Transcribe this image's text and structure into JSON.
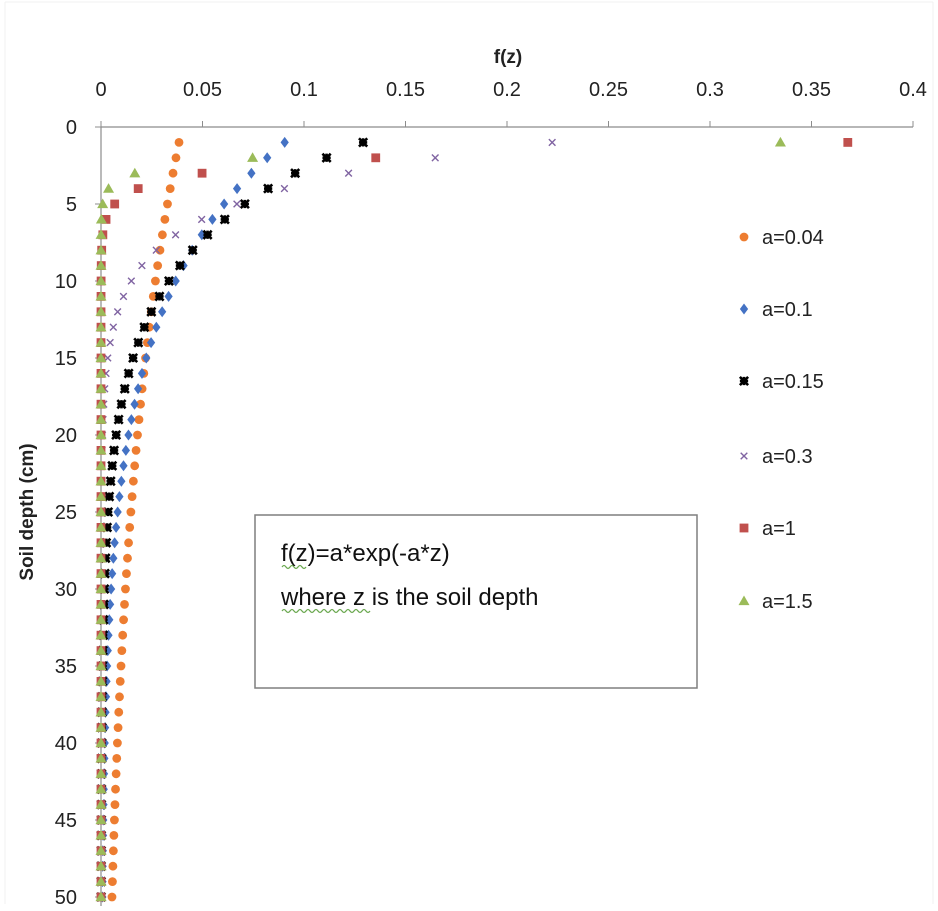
{
  "chart_data": {
    "type": "scatter",
    "title": "",
    "xlabel": "f(z)",
    "ylabel": "Soil depth (cm)",
    "x_axis_position": "top",
    "y_axis_inverted": true,
    "xlim": [
      0,
      0.4
    ],
    "ylim": [
      0,
      50
    ],
    "x_ticks": [
      "0",
      "0.05",
      "0.1",
      "0.15",
      "0.2",
      "0.25",
      "0.3",
      "0.35",
      "0.4"
    ],
    "y_ticks": [
      "0",
      "5",
      "10",
      "15",
      "20",
      "25",
      "30",
      "35",
      "40",
      "45",
      "50"
    ],
    "grid": false,
    "legend_position": "right",
    "formula": "f(z)=a*exp(-a*z)",
    "y_range": {
      "start": 1,
      "end": 50,
      "step": 1
    },
    "series": [
      {
        "name": "a=0.04",
        "a": 0.04,
        "marker": "circle",
        "color": "#ED7D31",
        "y": [
          1,
          2,
          3,
          4,
          5,
          6,
          7,
          8,
          9,
          10,
          11,
          12,
          13,
          14,
          15,
          16,
          17,
          18,
          19,
          20,
          21,
          22,
          23,
          24,
          25,
          26,
          27,
          28,
          29,
          30,
          31,
          32,
          33,
          34,
          35,
          36,
          37,
          38,
          39,
          40,
          41,
          42,
          43,
          44,
          45,
          46,
          47,
          48,
          49,
          50
        ],
        "x": [
          0.03843,
          0.03693,
          0.03548,
          0.03409,
          0.03275,
          0.03147,
          0.03024,
          0.02905,
          0.02791,
          0.02681,
          0.02576,
          0.02475,
          0.02378,
          0.02285,
          0.02195,
          0.02109,
          0.02026,
          0.01947,
          0.01871,
          0.01797,
          0.01727,
          0.01659,
          0.01594,
          0.01532,
          0.01472,
          0.01414,
          0.01358,
          0.01305,
          0.01254,
          0.01205,
          0.01158,
          0.01112,
          0.01069,
          0.01027,
          0.00986,
          0.00948,
          0.00911,
          0.00875,
          0.00841,
          0.00808,
          0.00776,
          0.00745,
          0.00716,
          0.00688,
          0.00661,
          0.00635,
          0.0061,
          0.00586,
          0.00563,
          0.00541
        ]
      },
      {
        "name": "a=0.1",
        "a": 0.1,
        "marker": "diamond",
        "color": "#4472C4",
        "y": [
          1,
          2,
          3,
          4,
          5,
          6,
          7,
          8,
          9,
          10,
          11,
          12,
          13,
          14,
          15,
          16,
          17,
          18,
          19,
          20,
          21,
          22,
          23,
          24,
          25,
          26,
          27,
          28,
          29,
          30,
          31,
          32,
          33,
          34,
          35,
          36,
          37,
          38,
          39,
          40,
          41,
          42,
          43,
          44,
          45,
          46,
          47,
          48,
          49,
          50
        ],
        "x": [
          0.09048,
          0.08187,
          0.07408,
          0.06703,
          0.06065,
          0.05488,
          0.04966,
          0.04493,
          0.04066,
          0.03679,
          0.03329,
          0.03012,
          0.02725,
          0.02466,
          0.02231,
          0.02019,
          0.01827,
          0.01653,
          0.01496,
          0.01353,
          0.01225,
          0.01108,
          0.01003,
          0.00907,
          0.00821,
          0.00743,
          0.00672,
          0.00608,
          0.0055,
          0.00498,
          0.0045,
          0.00408,
          0.00369,
          0.00334,
          0.00302,
          0.00273,
          0.00247,
          0.00224,
          0.00202,
          0.00183,
          0.00166,
          0.0015,
          0.00136,
          0.00123,
          0.00111,
          0.00101,
          0.00091,
          0.00082,
          0.00074,
          0.00067
        ]
      },
      {
        "name": "a=0.15",
        "a": 0.15,
        "marker": "star",
        "color": "#000000",
        "y": [
          1,
          2,
          3,
          4,
          5,
          6,
          7,
          8,
          9,
          10,
          11,
          12,
          13,
          14,
          15,
          16,
          17,
          18,
          19,
          20,
          21,
          22,
          23,
          24,
          25,
          26,
          27,
          28,
          29,
          30,
          31,
          32,
          33,
          34,
          35,
          36,
          37,
          38,
          39,
          40,
          41,
          42,
          43,
          44,
          45,
          46,
          47,
          48,
          49,
          50
        ],
        "x": [
          0.12911,
          0.11112,
          0.09564,
          0.08232,
          0.07085,
          0.06099,
          0.05249,
          0.04518,
          0.03889,
          0.03347,
          0.02881,
          0.0248,
          0.02134,
          0.01837,
          0.01581,
          0.01361,
          0.01171,
          0.01008,
          0.00868,
          0.00747,
          0.00643,
          0.00553,
          0.00476,
          0.0041,
          0.00353,
          0.00304,
          0.00261,
          0.00225,
          0.00194,
          0.00167,
          0.00143,
          0.00123,
          0.00106,
          0.00091,
          0.00079,
          0.00068,
          0.00058,
          0.0005,
          0.00043,
          0.00037,
          0.00032,
          0.00028,
          0.00024,
          0.0002,
          0.00018,
          0.00015,
          0.00013,
          0.00011,
          0.0001,
          8e-05
        ]
      },
      {
        "name": "a=0.3",
        "a": 0.3,
        "marker": "x",
        "color": "#8064A2",
        "y": [
          1,
          2,
          3,
          4,
          5,
          6,
          7,
          8,
          9,
          10,
          11,
          12,
          13,
          14,
          15,
          16,
          17,
          18,
          19,
          20,
          21,
          22,
          23,
          24,
          25,
          26,
          27,
          28,
          29,
          30,
          31,
          32,
          33,
          34,
          35,
          36,
          37,
          38,
          39,
          40,
          41,
          42,
          43,
          44,
          45,
          46,
          47,
          48,
          49,
          50
        ],
        "x": [
          0.22225,
          0.16464,
          0.12197,
          0.09036,
          0.06694,
          0.04959,
          0.03674,
          0.02722,
          0.02016,
          0.01494,
          0.01107,
          0.0082,
          0.00607,
          0.0045,
          0.00333,
          0.00247,
          0.00183,
          0.00136,
          0.001,
          0.00074,
          0.00055,
          0.00041,
          0.0003,
          0.00022,
          0.00017,
          0.00012,
          9e-05,
          7e-05,
          5e-05,
          4e-05,
          3e-05,
          2e-05,
          2e-05,
          1e-05,
          1e-05,
          1e-05,
          1e-05,
          0,
          0,
          0,
          0,
          0,
          0,
          0,
          0,
          0,
          0,
          0,
          0,
          0
        ]
      },
      {
        "name": "a=1",
        "a": 1,
        "marker": "square",
        "color": "#C0504D",
        "y": [
          1,
          2,
          3,
          4,
          5,
          6,
          7,
          8,
          9,
          10,
          11,
          12,
          13,
          14,
          15,
          16,
          17,
          18,
          19,
          20,
          21,
          22,
          23,
          24,
          25,
          26,
          27,
          28,
          29,
          30,
          31,
          32,
          33,
          34,
          35,
          36,
          37,
          38,
          39,
          40,
          41,
          42,
          43,
          44,
          45,
          46,
          47,
          48,
          49,
          50
        ],
        "x": [
          0.36788,
          0.13534,
          0.04979,
          0.01832,
          0.00674,
          0.00248,
          0.00091,
          0.00034,
          0.00012,
          5e-05,
          2e-05,
          1e-05,
          0,
          0,
          0,
          0,
          0,
          0,
          0,
          0,
          0,
          0,
          0,
          0,
          0,
          0,
          0,
          0,
          0,
          0,
          0,
          0,
          0,
          0,
          0,
          0,
          0,
          0,
          0,
          0,
          0,
          0,
          0,
          0,
          0,
          0,
          0,
          0,
          0,
          0
        ]
      },
      {
        "name": "a=1.5",
        "a": 1.5,
        "marker": "triangle",
        "color": "#9BBB59",
        "y": [
          1,
          2,
          3,
          4,
          5,
          6,
          7,
          8,
          9,
          10,
          11,
          12,
          13,
          14,
          15,
          16,
          17,
          18,
          19,
          20,
          21,
          22,
          23,
          24,
          25,
          26,
          27,
          28,
          29,
          30,
          31,
          32,
          33,
          34,
          35,
          36,
          37,
          38,
          39,
          40,
          41,
          42,
          43,
          44,
          45,
          46,
          47,
          48,
          49,
          50
        ],
        "x": [
          0.3347,
          0.07468,
          0.01666,
          0.00372,
          0.00083,
          0.00019,
          4e-05,
          1e-05,
          0,
          0,
          0,
          0,
          0,
          0,
          0,
          0,
          0,
          0,
          0,
          0,
          0,
          0,
          0,
          0,
          0,
          0,
          0,
          0,
          0,
          0,
          0,
          0,
          0,
          0,
          0,
          0,
          0,
          0,
          0,
          0,
          0,
          0,
          0,
          0,
          0,
          0,
          0,
          0,
          0,
          0
        ]
      }
    ],
    "annotation": {
      "line1": "f(z)=a*exp(-a*z)",
      "line2": "where z is the soil depth"
    }
  }
}
